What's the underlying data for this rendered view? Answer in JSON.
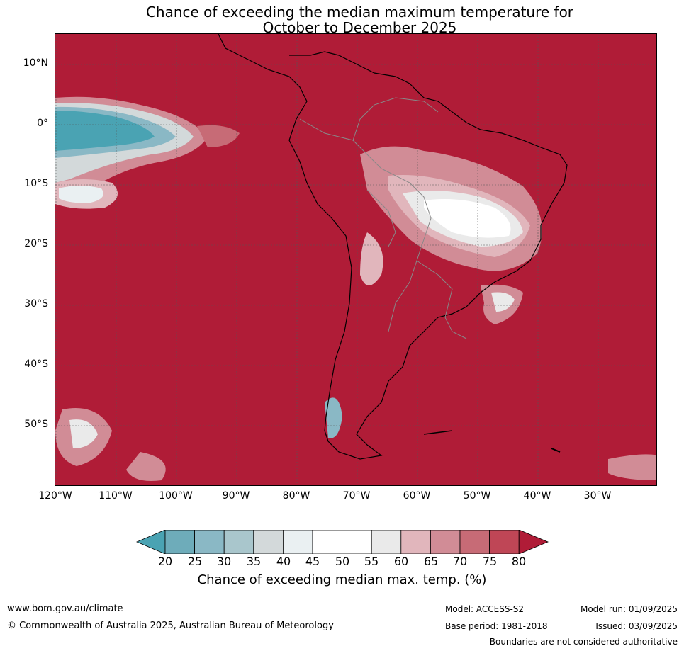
{
  "title": {
    "line1": "Chance of exceeding the median maximum temperature for",
    "line2": "October to December 2025"
  },
  "map": {
    "lat_labels": [
      "10°N",
      "0°",
      "10°S",
      "20°S",
      "30°S",
      "40°S",
      "50°S"
    ],
    "lon_labels": [
      "120°W",
      "110°W",
      "100°W",
      "90°W",
      "80°W",
      "70°W",
      "60°W",
      "50°W",
      "40°W",
      "30°W"
    ],
    "background_color": "#b01c37"
  },
  "colorbar": {
    "ticks": [
      "20",
      "25",
      "30",
      "35",
      "40",
      "45",
      "50",
      "55",
      "60",
      "65",
      "70",
      "75",
      "80"
    ],
    "colors": [
      "#4aa3b3",
      "#6eacba",
      "#8ab8c5",
      "#a9c6cc",
      "#d3d9da",
      "#eaf0f2",
      "#ffffff",
      "#ffffff",
      "#eaeaea",
      "#e1b6bc",
      "#d18c96",
      "#c76b76",
      "#bf4656",
      "#b01c37"
    ],
    "label": "Chance of exceeding median max. temp. (%)"
  },
  "footer": {
    "website": "www.bom.gov.au/climate",
    "copyright": "© Commonwealth of Australia 2025, Australian Bureau of Meteorology",
    "model": "Model: ACCESS-S2",
    "base_period": "Base period: 1981-2018",
    "model_run": "Model run: 01/09/2025",
    "issued": "Issued: 03/09/2025",
    "disclaimer": "Boundaries are not considered authoritative"
  }
}
